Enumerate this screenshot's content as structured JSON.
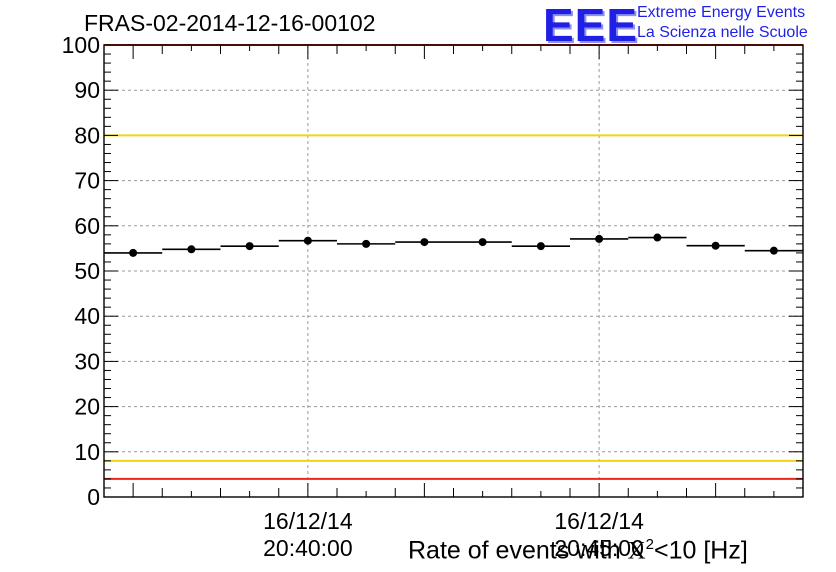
{
  "header": {
    "title": "FRAS-02-2014-12-16-00102",
    "logo_mark": "EEE",
    "logo_line1": "Extreme Energy Events",
    "logo_line2": "La Scienza nelle Scuole"
  },
  "chart_data": {
    "type": "scatter",
    "title": "FRAS-02-2014-12-16-00102",
    "xlabel_pre": "Rate of events with ",
    "xlabel_sym": "X",
    "xlabel_sup": "2",
    "xlabel_post": "<10 [Hz]",
    "ylim": [
      0,
      100
    ],
    "yticks": [
      0,
      10,
      20,
      30,
      40,
      50,
      60,
      70,
      80,
      90,
      100
    ],
    "xlim_minutes": [
      0,
      12
    ],
    "xtick_labels": [
      {
        "minute": 3.5,
        "date": "16/12/14",
        "time": "20:40:00"
      },
      {
        "minute": 8.5,
        "date": "16/12/14",
        "time": "20:45:00"
      }
    ],
    "bins": [
      {
        "x0": 0,
        "x1": 1,
        "y": 54
      },
      {
        "x0": 1,
        "x1": 2,
        "y": 54.8
      },
      {
        "x0": 2,
        "x1": 3,
        "y": 55.5
      },
      {
        "x0": 3,
        "x1": 4,
        "y": 56.7
      },
      {
        "x0": 4,
        "x1": 5,
        "y": 56
      },
      {
        "x0": 5,
        "x1": 6,
        "y": 56.4
      },
      {
        "x0": 6,
        "x1": 7,
        "y": 56.4
      },
      {
        "x0": 7,
        "x1": 8,
        "y": 55.5
      },
      {
        "x0": 8,
        "x1": 9,
        "y": 57.1
      },
      {
        "x0": 9,
        "x1": 10,
        "y": 57.4
      },
      {
        "x0": 10,
        "x1": 11,
        "y": 55.6
      },
      {
        "x0": 11,
        "x1": 12,
        "y": 54.5
      }
    ],
    "reference_lines": [
      {
        "y": 100,
        "color": "#e8281e"
      },
      {
        "y": 80,
        "color": "#f2d21a"
      },
      {
        "y": 8,
        "color": "#f2d21a"
      },
      {
        "y": 4,
        "color": "#e8281e"
      }
    ],
    "grid": true
  }
}
